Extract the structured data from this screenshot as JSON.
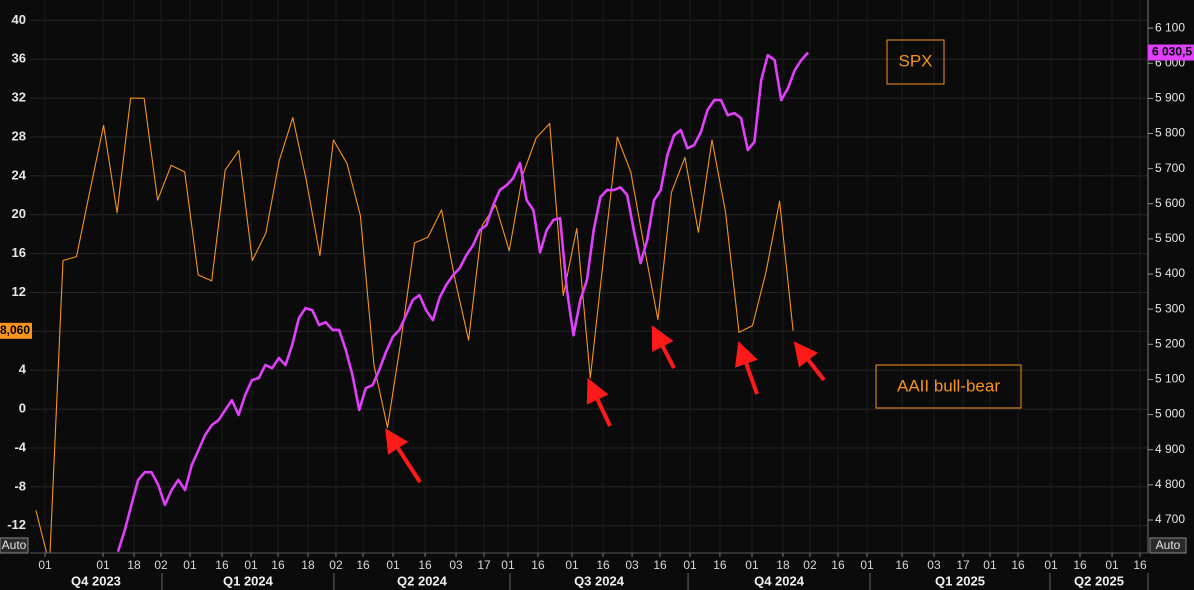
{
  "chart_data": {
    "type": "line",
    "xlim": [
      -2.44,
      80.25
    ],
    "ylim": [
      -14.8,
      42.1
    ],
    "y2lim": [
      4606,
      6180
    ],
    "grid": true,
    "yticks": [
      40,
      36,
      32,
      28,
      24,
      20,
      16,
      12,
      8,
      4,
      0,
      -4,
      -8,
      -12
    ],
    "y2ticks": [
      {
        "value": 6100,
        "label": "6 100"
      },
      {
        "value": 6000,
        "label": "6 000"
      },
      {
        "value": 5900,
        "label": "5 900"
      },
      {
        "value": 5800,
        "label": "5 800"
      },
      {
        "value": 5700,
        "label": "5 700"
      },
      {
        "value": 5600,
        "label": "5 600"
      },
      {
        "value": 5500,
        "label": "5 500"
      },
      {
        "value": 5400,
        "label": "5 400"
      },
      {
        "value": 5300,
        "label": "5 300"
      },
      {
        "value": 5200,
        "label": "5 200"
      },
      {
        "value": 5100,
        "label": "5 100"
      },
      {
        "value": 5000,
        "label": "5 000"
      },
      {
        "value": 4900,
        "label": "4 900"
      },
      {
        "value": 4800,
        "label": "4 800"
      },
      {
        "value": 4700,
        "label": "4 700"
      }
    ],
    "xticks": [
      {
        "value": -1.33,
        "label": "01"
      },
      {
        "value": 2.96,
        "label": "01"
      },
      {
        "value": 5.25,
        "label": "18"
      },
      {
        "value": 7.25,
        "label": "02"
      },
      {
        "value": 9.39,
        "label": "01"
      },
      {
        "value": 11.76,
        "label": "16"
      },
      {
        "value": 13.91,
        "label": "01"
      },
      {
        "value": 15.9,
        "label": "16"
      },
      {
        "value": 18.12,
        "label": "18"
      },
      {
        "value": 20.19,
        "label": "02"
      },
      {
        "value": 22.19,
        "label": "16"
      },
      {
        "value": 24.41,
        "label": "01"
      },
      {
        "value": 26.78,
        "label": "16"
      },
      {
        "value": 29.07,
        "label": "03"
      },
      {
        "value": 31.14,
        "label": "17"
      },
      {
        "value": 32.91,
        "label": "01"
      },
      {
        "value": 35.13,
        "label": "16"
      },
      {
        "value": 37.65,
        "label": "01"
      },
      {
        "value": 39.94,
        "label": "16"
      },
      {
        "value": 42.09,
        "label": "03"
      },
      {
        "value": 44.16,
        "label": "16"
      },
      {
        "value": 46.38,
        "label": "01"
      },
      {
        "value": 48.59,
        "label": "16"
      },
      {
        "value": 50.96,
        "label": "01"
      },
      {
        "value": 53.25,
        "label": "18"
      },
      {
        "value": 55.25,
        "label": "02"
      },
      {
        "value": 57.32,
        "label": "16"
      },
      {
        "value": 59.47,
        "label": "01"
      },
      {
        "value": 62.06,
        "label": "16"
      },
      {
        "value": 64.42,
        "label": "03"
      },
      {
        "value": 66.57,
        "label": "17"
      },
      {
        "value": 68.56,
        "label": "01"
      },
      {
        "value": 70.64,
        "label": "16"
      },
      {
        "value": 73.08,
        "label": "01"
      },
      {
        "value": 75.22,
        "label": "16"
      },
      {
        "value": 77.59,
        "label": "01"
      },
      {
        "value": 79.66,
        "label": "16"
      }
    ],
    "x_groups": [
      {
        "label": "Q4 2023",
        "start": -2.44,
        "end": 7.32
      },
      {
        "label": "Q1 2024",
        "start": 7.32,
        "end": 20.04
      },
      {
        "label": "Q2 2024",
        "start": 20.04,
        "end": 33.06
      },
      {
        "label": "Q3 2024",
        "start": 33.06,
        "end": 46.23
      },
      {
        "label": "Q4 2024",
        "start": 46.23,
        "end": 59.69
      },
      {
        "label": "Q1 2025",
        "start": 59.69,
        "end": 73.0
      },
      {
        "label": "Q2 2025",
        "start": 73.0,
        "end": 80.25
      }
    ],
    "annotations": [
      {
        "text": "SPX"
      },
      {
        "text": "AAII bull-bear"
      }
    ],
    "buttons": [
      "Auto",
      "Auto"
    ],
    "series": [
      {
        "name": "AAII bull-bear",
        "color": "#f7931e",
        "axis": "y",
        "last_label": "8,060",
        "x": [
          -2,
          -1,
          0,
          1,
          2,
          3,
          4,
          5,
          6,
          7,
          8,
          9,
          10,
          11,
          12,
          13,
          14,
          15,
          16,
          17,
          18,
          19,
          20,
          21,
          22,
          23,
          24,
          25,
          26,
          27,
          28,
          29,
          30,
          31,
          32,
          33,
          34,
          35,
          36,
          37,
          38,
          39,
          40,
          41,
          42,
          43,
          44,
          45,
          46,
          47,
          48,
          49,
          50,
          51,
          52,
          53,
          54
        ],
        "values": [
          -10.4,
          -16,
          15.3,
          15.7,
          22.5,
          29.2,
          20.2,
          32.0,
          32.0,
          21.5,
          25.1,
          24.4,
          13.8,
          13.2,
          24.6,
          26.6,
          15.3,
          18.1,
          25.6,
          30.0,
          23.5,
          15.8,
          27.7,
          25.3,
          19.9,
          4.5,
          -1.9,
          7.1,
          17.1,
          17.7,
          20.5,
          13.3,
          7.1,
          18.9,
          21.0,
          16.3,
          24.1,
          27.9,
          29.4,
          11.7,
          18.6,
          3.2,
          15.8,
          28.0,
          24.4,
          16.6,
          9.2,
          22.3,
          25.9,
          18.2,
          27.7,
          20.3,
          7.9,
          8.6,
          14.1,
          21.4,
          8.06
        ]
      },
      {
        "name": "SPX",
        "color": "#e040fb",
        "axis": "y2",
        "last_label": "6 030,5",
        "x": [
          4.07,
          4.57,
          5.06,
          5.56,
          6.05,
          6.55,
          7.04,
          7.54,
          8.03,
          8.53,
          9.03,
          9.52,
          10.02,
          10.51,
          11.01,
          11.5,
          12.0,
          12.49,
          12.99,
          13.48,
          13.98,
          14.48,
          14.97,
          15.47,
          15.96,
          16.46,
          16.95,
          17.45,
          17.94,
          18.44,
          18.94,
          19.43,
          19.93,
          20.42,
          20.92,
          21.41,
          21.91,
          22.4,
          22.9,
          23.39,
          23.89,
          24.39,
          24.88,
          25.38,
          25.87,
          26.37,
          26.86,
          27.36,
          27.85,
          28.35,
          28.85,
          29.34,
          29.84,
          30.33,
          30.83,
          31.32,
          31.82,
          32.31,
          32.81,
          33.3,
          33.8,
          34.3,
          34.79,
          35.29,
          35.78,
          36.28,
          36.77,
          37.27,
          37.76,
          38.26,
          38.76,
          39.25,
          39.75,
          40.24,
          40.74,
          41.23,
          41.73,
          42.22,
          42.72,
          43.21,
          43.71,
          44.21,
          44.7,
          45.2,
          45.69,
          46.19,
          46.68,
          47.18,
          47.67,
          48.17,
          48.67,
          49.16,
          49.66,
          50.15,
          50.65,
          51.14,
          51.64,
          52.13,
          52.63,
          53.12,
          53.62,
          54.12,
          54.61,
          55.11
        ],
        "values": [
          4610,
          4671,
          4743,
          4814,
          4836,
          4836,
          4800,
          4743,
          4785,
          4814,
          4785,
          4856,
          4899,
          4942,
          4970,
          4984,
          5013,
          5041,
          4999,
          5056,
          5098,
          5104,
          5141,
          5132,
          5161,
          5141,
          5198,
          5275,
          5303,
          5297,
          5255,
          5263,
          5241,
          5241,
          5184,
          5112,
          5013,
          5075,
          5084,
          5127,
          5178,
          5221,
          5241,
          5283,
          5326,
          5340,
          5297,
          5269,
          5332,
          5369,
          5397,
          5417,
          5454,
          5482,
          5525,
          5539,
          5596,
          5639,
          5653,
          5673,
          5716,
          5610,
          5582,
          5462,
          5525,
          5554,
          5559,
          5354,
          5226,
          5326,
          5383,
          5525,
          5619,
          5639,
          5639,
          5647,
          5625,
          5525,
          5431,
          5497,
          5610,
          5639,
          5739,
          5795,
          5810,
          5758,
          5767,
          5804,
          5867,
          5895,
          5895,
          5852,
          5858,
          5844,
          5753,
          5776,
          5952,
          6023,
          6009,
          5895,
          5929,
          5980,
          6009,
          6030.5
        ]
      }
    ]
  }
}
